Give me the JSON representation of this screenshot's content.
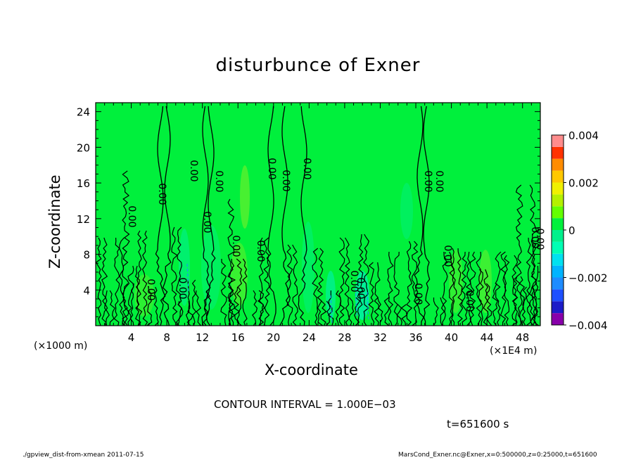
{
  "chart_data": {
    "type": "heatmap",
    "title": "disturbunce of Exner",
    "xlabel": "X-coordinate",
    "ylabel": "Z-coordinate",
    "x_unit": "(×1000 m)",
    "x_unit_right": "(×1E4 m)",
    "xlim": [
      0,
      50
    ],
    "ylim": [
      0,
      25
    ],
    "x_ticks": [
      4,
      8,
      12,
      16,
      20,
      24,
      28,
      32,
      36,
      40,
      44,
      48
    ],
    "y_ticks": [
      4,
      8,
      12,
      16,
      20,
      24
    ],
    "colorbar": {
      "min": -0.004,
      "max": 0.004,
      "labels": [
        "0.004",
        "0.002",
        "0",
        "−0.002",
        "−0.004"
      ],
      "label_values": [
        0.004,
        0.002,
        0,
        -0.002,
        -0.004
      ],
      "levels": [
        -0.004,
        -0.0035,
        -0.003,
        -0.0025,
        -0.002,
        -0.0015,
        -0.001,
        -0.0005,
        0,
        0.0005,
        0.001,
        0.0015,
        0.002,
        0.0025,
        0.003,
        0.0035,
        0.004
      ],
      "colors": [
        "#8800aa",
        "#1c1cc8",
        "#1e50ff",
        "#1e8cff",
        "#00b4ff",
        "#00e1f0",
        "#00ffb4",
        "#00f08c",
        "#00f03c",
        "#64ff00",
        "#b4f000",
        "#f0f000",
        "#ffc800",
        "#ff8c00",
        "#ff3200",
        "#ff8c8c"
      ],
      "field_color": "#00f03c"
    },
    "contour_interval": "CONTOUR INTERVAL = 1.000E−03",
    "contour_labels": [
      "0.00",
      "0.00",
      "0.00",
      "0.00",
      "0.00",
      "0.00",
      "0.00",
      "0.00",
      "0.00",
      "0.00",
      "0.00",
      "0.00",
      "0.00",
      "0.00",
      "0.00",
      "0.00",
      "0.00",
      "0.00",
      "0.00",
      "0.00",
      "0.00"
    ],
    "time": "t=651600 s"
  },
  "footer": {
    "left": "./gpview_dist-from-xmean  2011-07-15",
    "right": "MarsCond_Exner.nc@Exner,x=0:500000,z=0:25000,t=651600"
  }
}
